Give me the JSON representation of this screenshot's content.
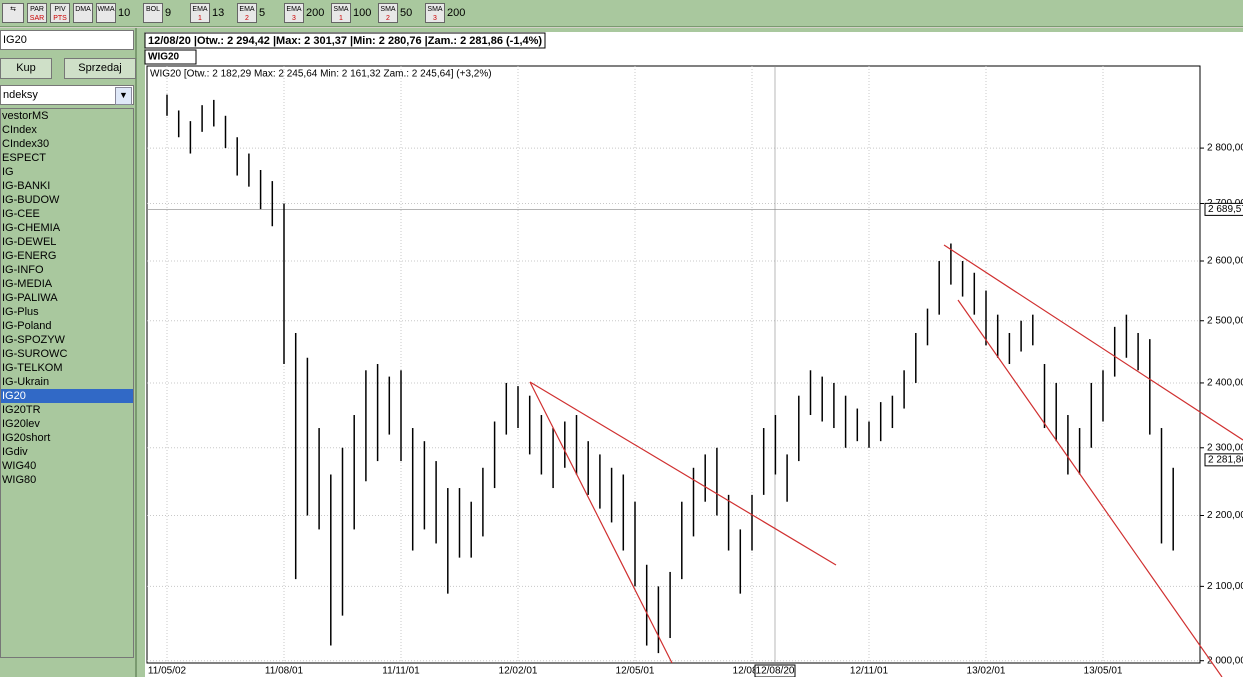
{
  "toolbar": [
    {
      "top": "PAR",
      "bottom": "SAR"
    },
    {
      "top": "PIV",
      "bottom": "PTS"
    },
    {
      "top": "DMA"
    },
    {
      "top": "WMA",
      "param": "10"
    },
    {
      "top": "BOL",
      "param": "9"
    },
    {
      "top": "EMA",
      "bottom": "1",
      "param": "13"
    },
    {
      "top": "EMA",
      "bottom": "2",
      "param": "5"
    },
    {
      "top": "EMA",
      "bottom": "3",
      "param": "200"
    },
    {
      "top": "SMA",
      "bottom": "1",
      "param": "100"
    },
    {
      "top": "SMA",
      "bottom": "2",
      "param": "50"
    },
    {
      "top": "SMA",
      "bottom": "3",
      "param": "200"
    }
  ],
  "sidebar": {
    "symbol": "IG20",
    "buy": "Kup",
    "sell": "Sprzedaj",
    "group": "ndeksy",
    "items": [
      "vestorMS",
      "CIndex",
      "CIndex30",
      "ESPECT",
      "IG",
      "IG-BANKI",
      "IG-BUDOW",
      "IG-CEE",
      "IG-CHEMIA",
      "IG-DEWEL",
      "IG-ENERG",
      "IG-INFO",
      "IG-MEDIA",
      "IG-PALIWA",
      "IG-Plus",
      "IG-Poland",
      "IG-SPOZYW",
      "IG-SUROWC",
      "IG-TELKOM",
      "IG-Ukrain",
      "IG20",
      "IG20TR",
      "IG20lev",
      "IG20short",
      "IGdiv",
      "WIG40",
      "WIG80"
    ],
    "selected": 20
  },
  "chart_data": {
    "type": "hlc",
    "info": "12/08/20 |Otw.: 2 294,42 |Max: 2 301,37 |Min: 2 280,76 |Zam.: 2 281,86 (-1,4%)",
    "tab": "WIG20",
    "legend": "WIG20 [Otw.: 2 182,29  Max: 2 245,64  Min: 2 161,32  Zam.: 2 245,64] (+3,2%)",
    "log_scale": true,
    "ylim": [
      1997,
      2955
    ],
    "yticks": [
      {
        "value": 2000,
        "label": "2 000,00"
      },
      {
        "value": 2100,
        "label": "2 100,00"
      },
      {
        "value": 2200,
        "label": "2 200,00"
      },
      {
        "value": 2300,
        "label": "2 300,00"
      },
      {
        "value": 2400,
        "label": "2 400,00"
      },
      {
        "value": 2500,
        "label": "2 500,00"
      },
      {
        "value": 2600,
        "label": "2 600,00"
      },
      {
        "value": 2700,
        "label": "2 700,00"
      },
      {
        "value": 2800,
        "label": "2 800,00"
      }
    ],
    "crosshair": {
      "date": "12/08/20",
      "price": {
        "value": 2689.57,
        "label": "2 689,57"
      }
    },
    "last": {
      "value": 2281.86,
      "label": "2 281,86"
    },
    "color": "#000000",
    "trend_color": "#d03030",
    "periods": [
      {
        "label": "11/05/02",
        "high": [
          2900,
          2870,
          2850,
          2880,
          2890,
          2860,
          2820,
          2790,
          2760,
          2740
        ],
        "low": [
          2860,
          2820,
          2790,
          2830,
          2840,
          2800,
          2750,
          2730,
          2690,
          2660
        ]
      },
      {
        "label": "11/08/01",
        "high": [
          2700,
          2480,
          2440,
          2330,
          2260,
          2300,
          2350,
          2420,
          2430,
          2410
        ],
        "low": [
          2430,
          2110,
          2200,
          2180,
          2020,
          2060,
          2180,
          2250,
          2280,
          2320
        ]
      },
      {
        "label": "11/11/01",
        "high": [
          2420,
          2330,
          2310,
          2280,
          2240,
          2240,
          2220,
          2270,
          2340,
          2400
        ],
        "low": [
          2280,
          2150,
          2180,
          2160,
          2090,
          2140,
          2140,
          2170,
          2240,
          2320
        ]
      },
      {
        "label": "12/02/01",
        "high": [
          2395,
          2380,
          2350,
          2330,
          2340,
          2350,
          2310,
          2290,
          2270,
          2260
        ],
        "low": [
          2330,
          2290,
          2260,
          2240,
          2270,
          2260,
          2230,
          2210,
          2190,
          2150
        ]
      },
      {
        "label": "12/05/01",
        "high": [
          2220,
          2130,
          2100,
          2120,
          2220,
          2270,
          2290,
          2300,
          2230,
          2180
        ],
        "low": [
          2100,
          2020,
          2010,
          2030,
          2110,
          2170,
          2220,
          2200,
          2150,
          2090
        ]
      },
      {
        "label": "12/08/01",
        "high": [
          2230,
          2330,
          2350,
          2290,
          2380,
          2420,
          2410,
          2400,
          2380,
          2360
        ],
        "low": [
          2150,
          2230,
          2260,
          2220,
          2280,
          2350,
          2340,
          2330,
          2300,
          2310
        ]
      },
      {
        "label": "12/11/01",
        "high": [
          2340,
          2370,
          2380,
          2420,
          2480,
          2520,
          2600,
          2630,
          2600,
          2580
        ],
        "low": [
          2300,
          2310,
          2330,
          2360,
          2400,
          2460,
          2510,
          2560,
          2540,
          2510
        ]
      },
      {
        "label": "13/02/01",
        "high": [
          2550,
          2510,
          2480,
          2500,
          2510,
          2430,
          2400,
          2350,
          2330,
          2400
        ],
        "low": [
          2460,
          2440,
          2430,
          2450,
          2460,
          2330,
          2310,
          2260,
          2260,
          2300
        ]
      },
      {
        "label": "13/05/01",
        "high": [
          2420,
          2490,
          2510,
          2480,
          2470,
          2330,
          2270
        ],
        "low": [
          2340,
          2410,
          2440,
          2420,
          2320,
          2160,
          2150
        ]
      }
    ]
  }
}
